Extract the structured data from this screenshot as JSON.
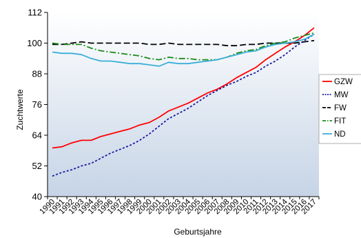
{
  "chart_data": {
    "type": "line",
    "title": "",
    "xlabel": "Geburtsjahre",
    "ylabel": "Zuchtwerte",
    "ylim": [
      40,
      112
    ],
    "yticks": [
      40,
      52,
      64,
      76,
      88,
      100,
      112
    ],
    "grid": false,
    "legend_position": "right",
    "x": [
      "1990",
      "1991",
      "1992",
      "1993",
      "1994",
      "1995",
      "1996",
      "1997",
      "1998",
      "1999",
      "2000",
      "2001",
      "2002",
      "2003",
      "2004",
      "2005",
      "2006",
      "2007",
      "2008",
      "2009",
      "2010",
      "2011",
      "2012",
      "2013",
      "2014",
      "2015",
      "2016",
      "2017"
    ],
    "series": [
      {
        "name": "GZW",
        "color": "#ff0000",
        "dash": "solid",
        "values": [
          59,
          59.5,
          61,
          62,
          62,
          63.5,
          64.5,
          65.5,
          66.5,
          68,
          69,
          71,
          73.5,
          75,
          76.5,
          78.5,
          80.5,
          82,
          84,
          86.5,
          88.5,
          90.5,
          93.5,
          96,
          98.5,
          100.5,
          103,
          106
        ]
      },
      {
        "name": "MW",
        "color": "#1a1aa0",
        "dash": "dotted",
        "values": [
          48,
          49.5,
          50.5,
          52,
          53,
          55,
          57,
          58.5,
          60,
          62,
          64.5,
          67.5,
          70.5,
          72.5,
          74.5,
          77,
          79.5,
          81.5,
          83.5,
          85,
          87,
          88.5,
          91,
          93,
          95.5,
          98.5,
          101,
          103.5
        ]
      },
      {
        "name": "FW",
        "color": "#000000",
        "dash": "dashed",
        "values": [
          99.5,
          99.5,
          100,
          100.5,
          100,
          100,
          100,
          100,
          100,
          100,
          99.5,
          99.5,
          100,
          99.5,
          99.5,
          99.5,
          99.5,
          99.5,
          99,
          99,
          99.5,
          99.5,
          100,
          100,
          100,
          100,
          100.5,
          101
        ]
      },
      {
        "name": "FIT",
        "color": "#1a8a1a",
        "dash": "dashdot",
        "values": [
          100,
          99.5,
          99.5,
          99.5,
          98,
          97,
          96.5,
          96,
          95.5,
          95,
          94,
          93.5,
          94.5,
          94,
          94,
          93.5,
          93.5,
          93.5,
          94.5,
          96,
          97,
          97.5,
          99,
          100,
          100.5,
          102,
          103,
          104
        ]
      },
      {
        "name": "ND",
        "color": "#3aaed8",
        "dash": "solid",
        "values": [
          96.5,
          96,
          96,
          95.5,
          94,
          93,
          93,
          92.5,
          92,
          92,
          91.5,
          91,
          92.5,
          92,
          92,
          92.5,
          93,
          93.5,
          94.5,
          95.5,
          96.5,
          97,
          98.5,
          99.5,
          100,
          100.5,
          101.5,
          103.5
        ]
      }
    ]
  }
}
